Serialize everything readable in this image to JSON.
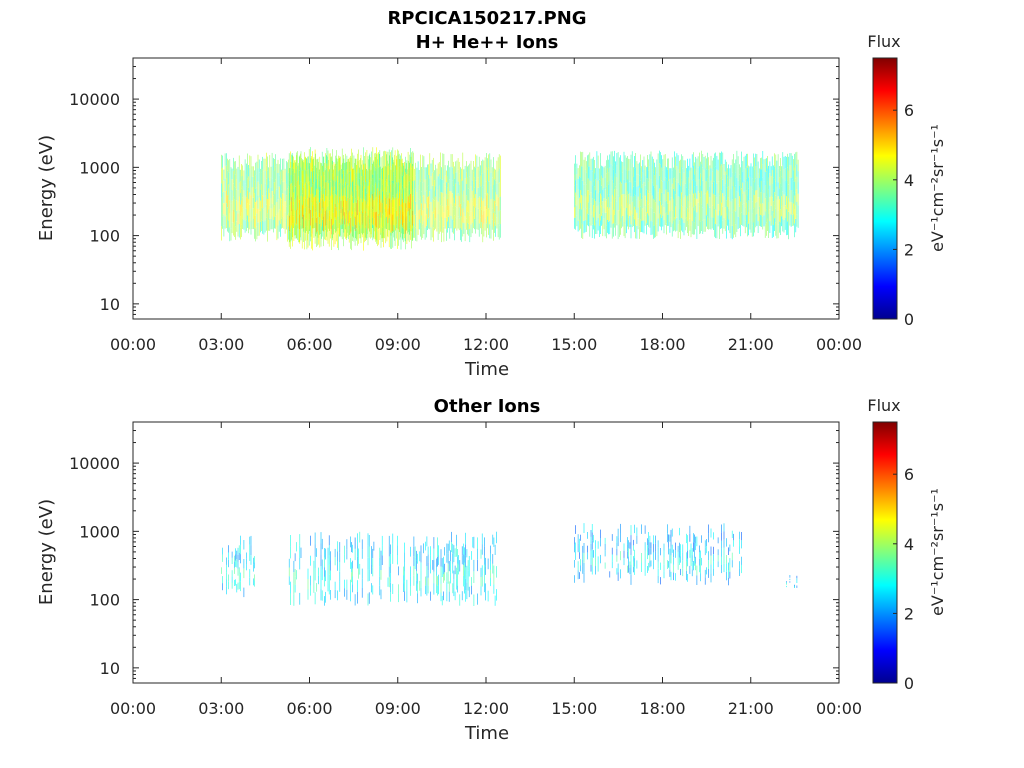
{
  "figure": {
    "title": "RPCICA150217.PNG"
  },
  "chart_data": [
    {
      "type": "heatmap",
      "title": "H+ He++ Ions",
      "xlabel": "Time",
      "ylabel": "Energy (eV)",
      "x_ticks": [
        "00:00",
        "03:00",
        "06:00",
        "09:00",
        "12:00",
        "15:00",
        "18:00",
        "21:00",
        "00:00"
      ],
      "y_ticks": [
        "10",
        "100",
        "1000",
        "10000"
      ],
      "y_scale": "log",
      "ylim": [
        6,
        40000
      ],
      "xlim_hours": [
        0,
        24
      ],
      "colorbar": {
        "label": "Flux",
        "units": "eV⁻¹cm⁻²sr⁻¹s⁻¹",
        "ticks": [
          "0",
          "2",
          "4",
          "6"
        ],
        "range": [
          0,
          7.5
        ],
        "colormap": "jet"
      },
      "segments": [
        {
          "t_start": 3.0,
          "t_end": 12.5,
          "e_low": 100,
          "e_high": 1500,
          "flux_level": 3.8
        },
        {
          "t_start": 5.3,
          "t_end": 9.5,
          "e_low": 75,
          "e_high": 1800,
          "flux_level": 4.2
        },
        {
          "t_start": 15.0,
          "t_end": 22.6,
          "e_low": 110,
          "e_high": 1600,
          "flux_level": 3.4
        }
      ]
    },
    {
      "type": "heatmap",
      "title": "Other Ions",
      "xlabel": "Time",
      "ylabel": "Energy (eV)",
      "x_ticks": [
        "00:00",
        "03:00",
        "06:00",
        "09:00",
        "12:00",
        "15:00",
        "18:00",
        "21:00",
        "00:00"
      ],
      "y_ticks": [
        "10",
        "100",
        "1000",
        "10000"
      ],
      "y_scale": "log",
      "ylim": [
        6,
        40000
      ],
      "xlim_hours": [
        0,
        24
      ],
      "colorbar": {
        "label": "Flux",
        "units": "eV⁻¹cm⁻²sr⁻¹s⁻¹",
        "ticks": [
          "0",
          "2",
          "4",
          "6"
        ],
        "range": [
          0,
          7.5
        ],
        "colormap": "jet"
      },
      "segments": [
        {
          "t_start": 3.0,
          "t_end": 4.2,
          "e_low": 130,
          "e_high": 800,
          "flux_level": 2.6
        },
        {
          "t_start": 5.3,
          "t_end": 12.4,
          "e_low": 100,
          "e_high": 900,
          "flux_level": 2.5
        },
        {
          "t_start": 15.0,
          "t_end": 20.7,
          "e_low": 200,
          "e_high": 1200,
          "flux_level": 2.3
        },
        {
          "t_start": 22.2,
          "t_end": 22.6,
          "e_low": 180,
          "e_high": 230,
          "flux_level": 2.4
        }
      ]
    }
  ]
}
